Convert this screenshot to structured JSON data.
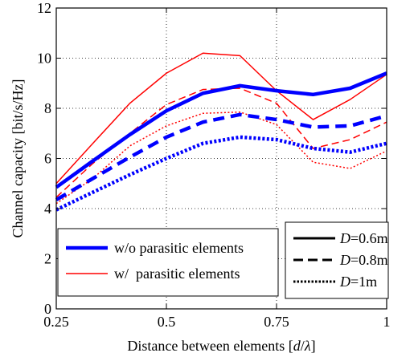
{
  "chart_data": {
    "type": "line",
    "xlabel": "Distance between elements [d/λ]",
    "xlabel_parts": {
      "prefix": "Distance between elements [",
      "var": "d",
      "sep": "/",
      "lambda": "λ",
      "suffix": "]"
    },
    "ylabel": "Channel capacity [bit/s/Hz]",
    "xlim": [
      0.25,
      1
    ],
    "ylim": [
      0,
      12
    ],
    "xticks": [
      0.25,
      0.5,
      0.75,
      1
    ],
    "xtick_labels": [
      "0.25",
      "0.5",
      "0.75",
      "1"
    ],
    "yticks": [
      0,
      2,
      4,
      6,
      8,
      10,
      12
    ],
    "ytick_labels": [
      "0",
      "2",
      "4",
      "6",
      "8",
      "10",
      "12"
    ],
    "grid": true,
    "x": [
      0.25,
      0.333,
      0.417,
      0.5,
      0.583,
      0.667,
      0.75,
      0.833,
      0.917,
      1.0
    ],
    "series": [
      {
        "key": "wo_06",
        "group": "w/o parasitic elements",
        "D": "0.6m",
        "color": "#0000ff",
        "width": "thick",
        "dash": "solid",
        "values": [
          4.85,
          5.9,
          6.95,
          7.9,
          8.6,
          8.9,
          8.7,
          8.55,
          8.8,
          9.4
        ]
      },
      {
        "key": "wo_08",
        "group": "w/o parasitic elements",
        "D": "0.8m",
        "color": "#0000ff",
        "width": "thick",
        "dash": "dashed",
        "values": [
          4.35,
          5.2,
          6.05,
          6.85,
          7.45,
          7.75,
          7.55,
          7.25,
          7.3,
          7.7
        ]
      },
      {
        "key": "wo_1",
        "group": "w/o parasitic elements",
        "D": "1m",
        "color": "#0000ff",
        "width": "thick",
        "dash": "dotted",
        "values": [
          3.95,
          4.65,
          5.35,
          6.0,
          6.6,
          6.85,
          6.75,
          6.4,
          6.25,
          6.6
        ]
      },
      {
        "key": "w_06",
        "group": "w/ parasitic elements",
        "D": "0.6m",
        "color": "#ff0000",
        "width": "thin",
        "dash": "solid",
        "values": [
          5.0,
          6.6,
          8.2,
          9.4,
          10.2,
          10.1,
          8.7,
          7.55,
          8.35,
          9.35
        ]
      },
      {
        "key": "w_08",
        "group": "w/ parasitic elements",
        "D": "0.8m",
        "color": "#ff0000",
        "width": "thin",
        "dash": "dashed",
        "values": [
          4.45,
          5.8,
          7.0,
          8.15,
          8.75,
          8.8,
          8.2,
          6.4,
          6.75,
          7.45
        ]
      },
      {
        "key": "w_1",
        "group": "w/ parasitic elements",
        "D": "1m",
        "color": "#ff0000",
        "width": "thin",
        "dash": "dotted",
        "values": [
          4.2,
          5.2,
          6.5,
          7.3,
          7.8,
          7.85,
          7.35,
          5.85,
          5.6,
          6.3
        ]
      }
    ],
    "legend_left": {
      "placement": "bottom-left",
      "entries": [
        {
          "label": "w/o parasitic elements",
          "color": "#0000ff",
          "width": "thick"
        },
        {
          "label": "w/  parasitic elements",
          "color": "#ff0000",
          "width": "thin"
        }
      ]
    },
    "legend_right": {
      "placement": "bottom-right",
      "entries": [
        {
          "var": "D",
          "value": "=0.6m",
          "dash": "solid"
        },
        {
          "var": "D",
          "value": "=0.8m",
          "dash": "dashed"
        },
        {
          "var": "D",
          "value": "=1m",
          "dash": "dotted"
        }
      ]
    }
  }
}
